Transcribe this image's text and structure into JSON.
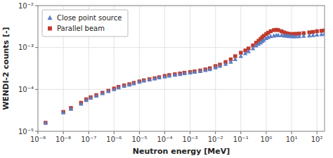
{
  "chart_data": {
    "type": "scatter",
    "xlabel": "Neutron energy [MeV]",
    "ylabel": "WENDI-2 counts [-]",
    "log": true,
    "grid": true,
    "legend": "upper left",
    "xlim": [
      1e-09,
      200
    ],
    "ylim": [
      1e-05,
      0.01
    ],
    "xticks": [
      {
        "value": 1e-09,
        "label": "10⁻⁹"
      },
      {
        "value": 1e-08,
        "label": "10⁻⁸"
      },
      {
        "value": 1e-07,
        "label": "10⁻⁷"
      },
      {
        "value": 1e-06,
        "label": "10⁻⁶"
      },
      {
        "value": 1e-05,
        "label": "10⁻⁵"
      },
      {
        "value": 0.0001,
        "label": "10⁻⁴"
      },
      {
        "value": 0.001,
        "label": "10⁻³"
      },
      {
        "value": 0.01,
        "label": "10⁻²"
      },
      {
        "value": 0.1,
        "label": "10⁻¹"
      },
      {
        "value": 1,
        "label": "10⁰"
      },
      {
        "value": 10,
        "label": "10¹"
      },
      {
        "value": 100,
        "label": "10²"
      }
    ],
    "yticks": [
      {
        "value": 1e-05,
        "label": "10⁻⁵"
      },
      {
        "value": 0.0001,
        "label": "10⁻⁴"
      },
      {
        "value": 0.001,
        "label": "10⁻³"
      },
      {
        "value": 0.01,
        "label": "10⁻²"
      }
    ],
    "x": [
      2e-09,
      1e-08,
      2e-08,
      5e-08,
      8e-08,
      1.2e-07,
      2e-07,
      3.5e-07,
      6e-07,
      1e-06,
      1.5e-06,
      2.5e-06,
      4e-06,
      6e-06,
      1e-05,
      1.5e-05,
      2.5e-05,
      4e-05,
      6e-05,
      0.0001,
      0.00015,
      0.00025,
      0.0004,
      0.0006,
      0.001,
      0.0015,
      0.0025,
      0.004,
      0.006,
      0.01,
      0.015,
      0.025,
      0.04,
      0.06,
      0.1,
      0.15,
      0.2,
      0.3,
      0.4,
      0.5,
      0.6,
      0.7,
      0.8,
      1.0,
      1.2,
      1.5,
      2.0,
      2.5,
      3.0,
      4.0,
      5.0,
      6.0,
      7.0,
      8.0,
      10.0,
      12.0,
      15.0,
      20.0,
      30.0,
      50.0,
      70.0,
      100.0,
      150.0,
      200.0
    ],
    "series": [
      {
        "name": "Close point source",
        "color": "#5b7fc4",
        "marker": "triangle",
        "values": [
          1.6e-05,
          2.8e-05,
          3.4e-05,
          4.5e-05,
          5.5e-05,
          6.2e-05,
          7e-05,
          8e-05,
          9e-05,
          0.0001,
          0.00011,
          0.00012,
          0.000128,
          0.000138,
          0.00015,
          0.00016,
          0.00017,
          0.00018,
          0.00019,
          0.0002,
          0.00021,
          0.00022,
          0.00023,
          0.00024,
          0.00025,
          0.00026,
          0.00027,
          0.000285,
          0.0003,
          0.00033,
          0.00036,
          0.0004,
          0.00045,
          0.00052,
          0.00062,
          0.00072,
          0.0008,
          0.00095,
          0.0011,
          0.0012,
          0.0013,
          0.0014,
          0.0015,
          0.00165,
          0.00175,
          0.00185,
          0.0019,
          0.00195,
          0.00195,
          0.00195,
          0.00192,
          0.0019,
          0.00188,
          0.00185,
          0.00185,
          0.00182,
          0.00182,
          0.00185,
          0.00188,
          0.00192,
          0.00195,
          0.002,
          0.00205,
          0.0021
        ]
      },
      {
        "name": "Parallel beam",
        "color": "#c0392b",
        "marker": "square",
        "values": [
          1.6e-05,
          2.9e-05,
          3.6e-05,
          4.8e-05,
          5.8e-05,
          6.5e-05,
          7.3e-05,
          8.3e-05,
          9.3e-05,
          0.000105,
          0.000115,
          0.000125,
          0.000133,
          0.000143,
          0.000155,
          0.000165,
          0.000175,
          0.000185,
          0.000195,
          0.00021,
          0.00022,
          0.00023,
          0.00024,
          0.00025,
          0.00026,
          0.00027,
          0.000282,
          0.0003,
          0.00032,
          0.00036,
          0.00039,
          0.00045,
          0.00052,
          0.00062,
          0.00075,
          0.00085,
          0.00095,
          0.00112,
          0.0013,
          0.00145,
          0.0016,
          0.00175,
          0.0019,
          0.0021,
          0.00225,
          0.00245,
          0.0026,
          0.00265,
          0.0026,
          0.00245,
          0.0023,
          0.0022,
          0.00215,
          0.0021,
          0.0021,
          0.0021,
          0.00212,
          0.00215,
          0.0022,
          0.0023,
          0.00235,
          0.00245,
          0.0025,
          0.00255
        ]
      }
    ]
  }
}
